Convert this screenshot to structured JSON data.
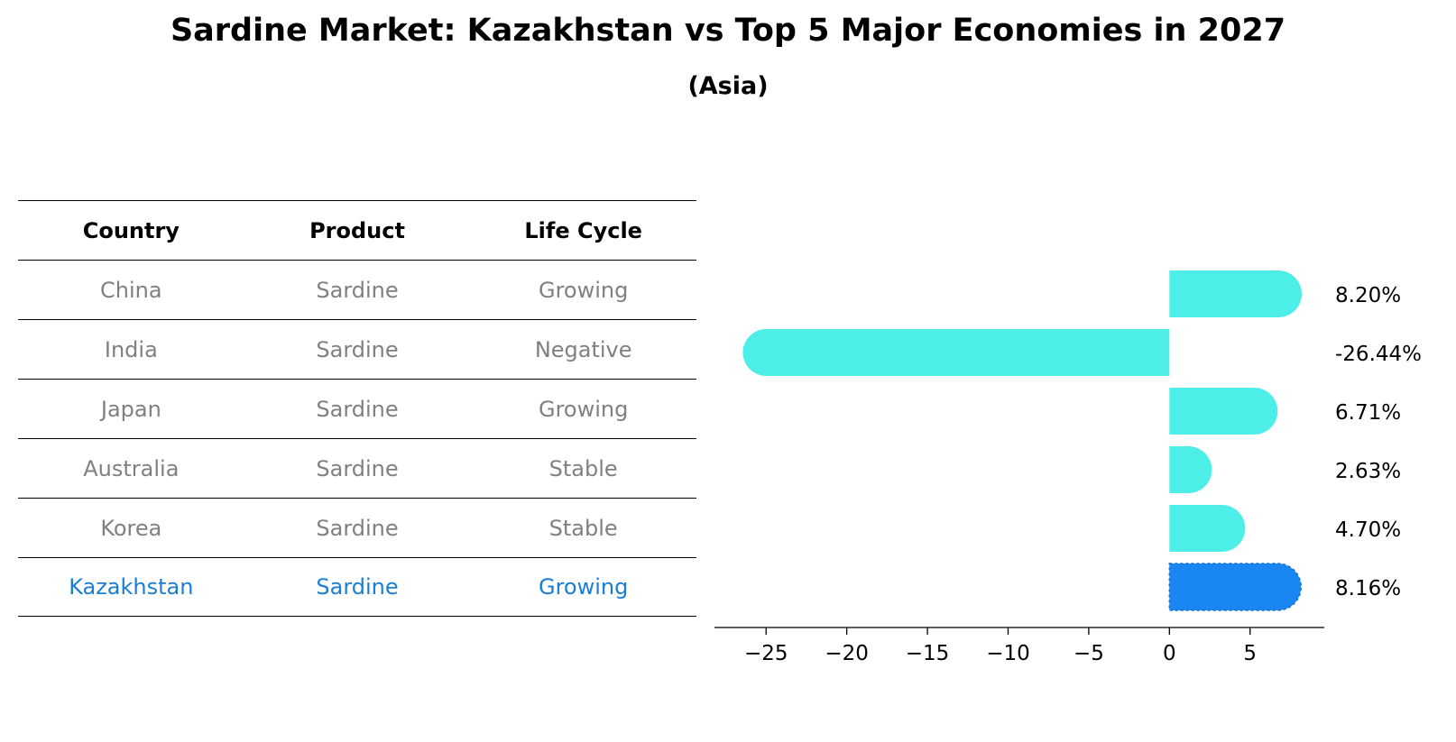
{
  "chart_data": {
    "type": "bar",
    "orientation": "horizontal",
    "title": "Sardine Market: Kazakhstan vs Top 5 Major Economies in 2027",
    "subtitle": "(Asia)",
    "table": {
      "columns": [
        "Country",
        "Product",
        "Life Cycle"
      ],
      "rows": [
        {
          "country": "China",
          "product": "Sardine",
          "life_cycle": "Growing"
        },
        {
          "country": "India",
          "product": "Sardine",
          "life_cycle": "Negative"
        },
        {
          "country": "Japan",
          "product": "Sardine",
          "life_cycle": "Growing"
        },
        {
          "country": "Australia",
          "product": "Sardine",
          "life_cycle": "Stable"
        },
        {
          "country": "Korea",
          "product": "Sardine",
          "life_cycle": "Stable"
        },
        {
          "country": "Kazakhstan",
          "product": "Sardine",
          "life_cycle": "Growing"
        }
      ]
    },
    "categories": [
      "China",
      "India",
      "Japan",
      "Australia",
      "Korea",
      "Kazakhstan"
    ],
    "values": [
      8.2,
      -26.44,
      6.71,
      2.63,
      4.7,
      8.16
    ],
    "value_labels": [
      "8.20%",
      "-26.44%",
      "6.71%",
      "2.63%",
      "4.70%",
      "8.16%"
    ],
    "highlight": "Kazakhstan",
    "xlim": [
      -28.2,
      9.6
    ],
    "xticks": [
      -25,
      -20,
      -15,
      -10,
      -5,
      0,
      5
    ],
    "xtick_labels": [
      "−25",
      "−20",
      "−15",
      "−10",
      "−5",
      "0",
      "5"
    ],
    "xlabel": "",
    "ylabel": "",
    "grid": false,
    "colors": {
      "bar": "#4deee8",
      "highlight_bar": "#1a86f2",
      "highlight_text": "#1a7fd4",
      "muted_text": "#808080"
    }
  }
}
